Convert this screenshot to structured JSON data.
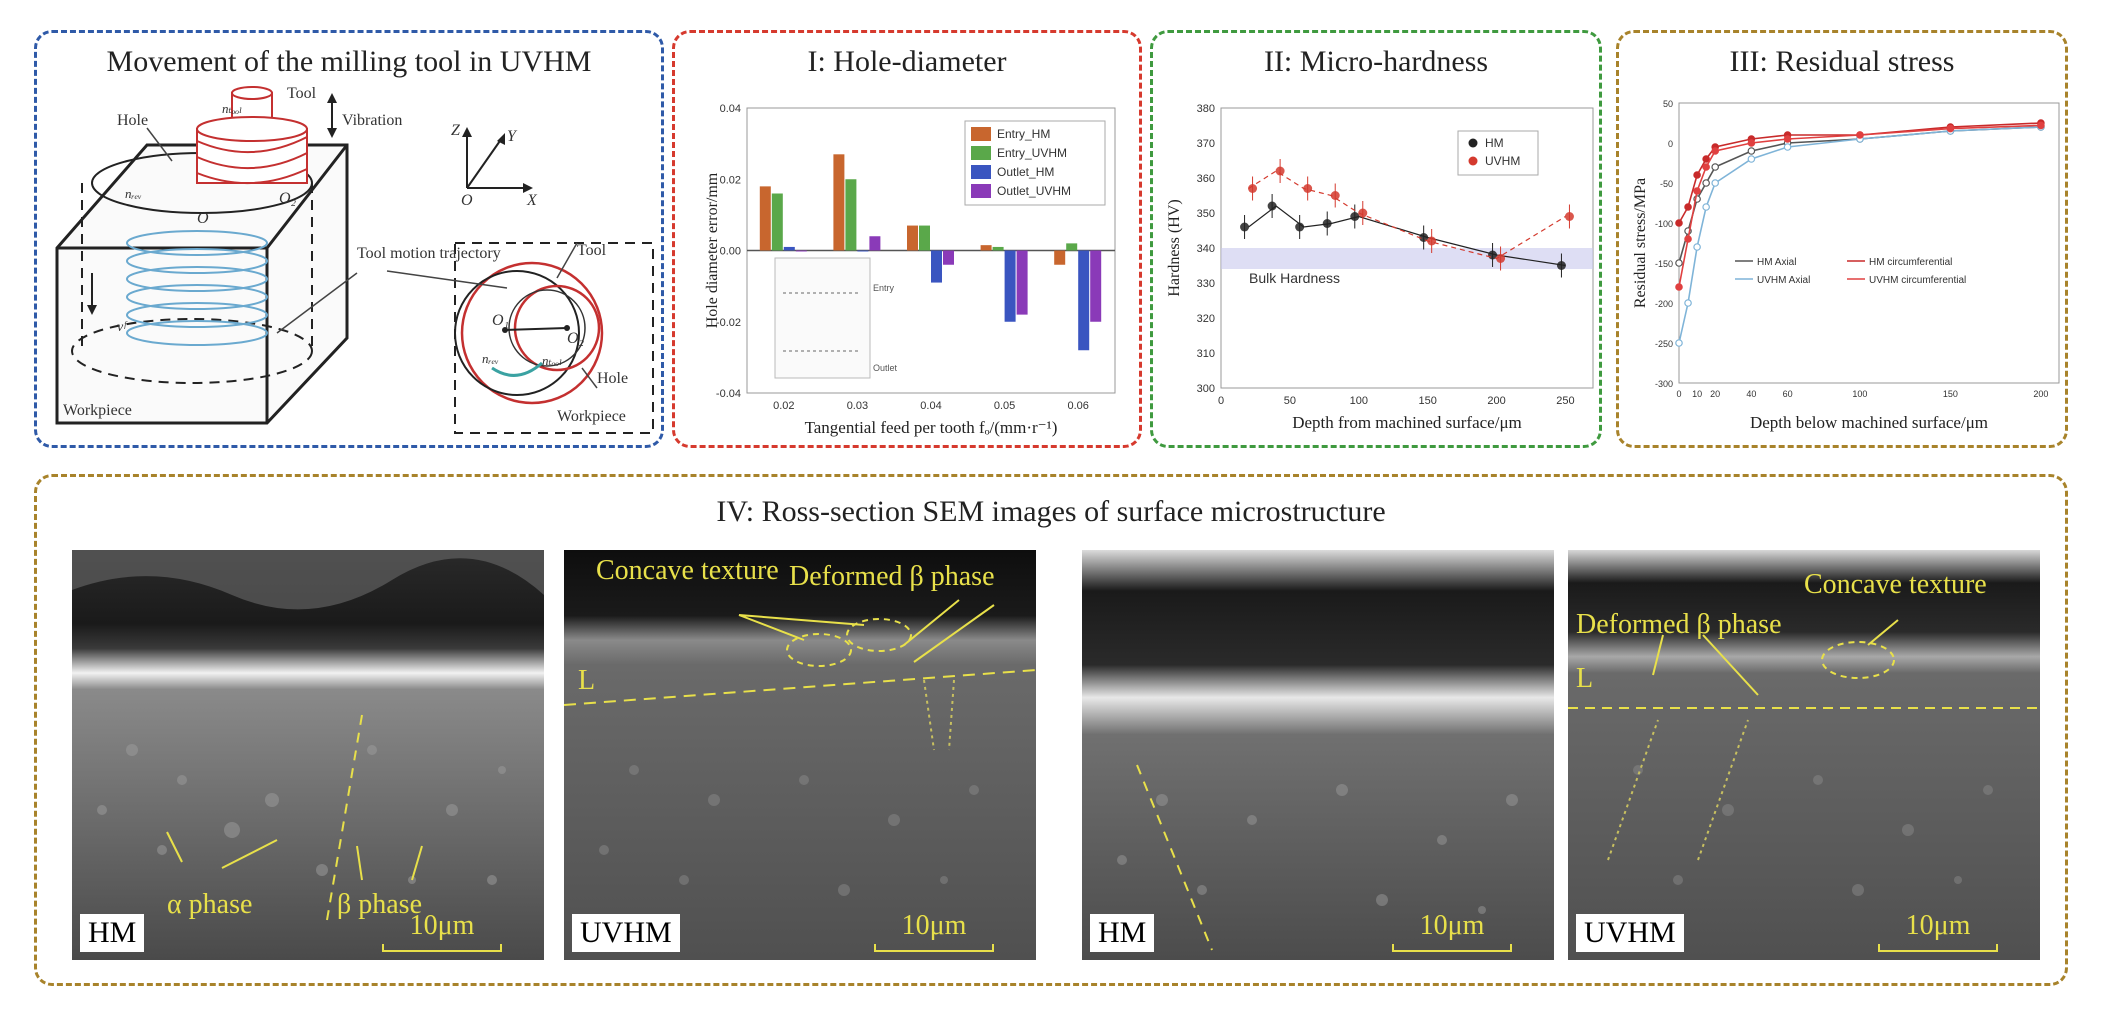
{
  "panels": {
    "movement": {
      "title": "Movement of the milling tool in UVHM",
      "labels": {
        "tool": "Tool",
        "vibration": "Vibration",
        "hole": "Hole",
        "workpiece": "Workpiece",
        "tool_motion": "Tool motion trajectory",
        "tool_inset": "Tool",
        "hole_inset": "Hole",
        "workpiece_inset": "Workpiece",
        "z": "Z",
        "y": "Y",
        "x": "X",
        "o": "O",
        "o1": "O₁",
        "o2": "O₂",
        "o_main": "O",
        "o2_main": "O₂",
        "n_tool": "nₜₒₒₗ",
        "n_rev": "nᵣₑᵥ",
        "n_rev2": "nᵣₑᵥ",
        "n_tool2": "nₜₒₒₗ",
        "v": "vᶠ"
      }
    },
    "hole": {
      "title": "I: Hole-diameter"
    },
    "hardness": {
      "title": "II: Micro-hardness"
    },
    "residual": {
      "title": "III: Residual stress"
    },
    "sem": {
      "title": "IV: Ross-section SEM images of surface microstructure"
    }
  },
  "chart_data": [
    {
      "id": "hole-diameter",
      "type": "bar",
      "xlabel": "Tangential feed per tooth fₒ/(mm·r⁻¹)",
      "ylabel": "Hole diameter error/mm",
      "categories": [
        "0.02",
        "0.03",
        "0.04",
        "0.05",
        "0.06"
      ],
      "ylim": [
        -0.04,
        0.04
      ],
      "yticks": [
        "0.04",
        "0.02",
        "0.00",
        "-0.02",
        "-0.04"
      ],
      "series": [
        {
          "name": "Entry_HM",
          "color": "#c8662e",
          "values": [
            0.018,
            0.027,
            0.007,
            0.0015,
            -0.004
          ]
        },
        {
          "name": "Entry_UVHM",
          "color": "#5aa84a",
          "values": [
            0.016,
            0.02,
            0.007,
            0.001,
            0.002
          ]
        },
        {
          "name": "Outlet_HM",
          "color": "#3a55c0",
          "values": [
            0.001,
            0.0,
            -0.009,
            -0.02,
            -0.028
          ]
        },
        {
          "name": "Outlet_UVHM",
          "color": "#8a3ab8",
          "values": [
            0.0,
            0.004,
            -0.004,
            -0.018,
            -0.02
          ]
        }
      ],
      "inset_labels": [
        "Entry",
        "Outlet"
      ]
    },
    {
      "id": "micro-hardness",
      "type": "scatter",
      "xlabel": "Depth from machined surface/μm",
      "ylabel": "Hardness (HV)",
      "xlim": [
        0,
        270
      ],
      "ylim": [
        300,
        380
      ],
      "xticks": [
        "0",
        "50",
        "100",
        "150",
        "200",
        "250"
      ],
      "yticks": [
        "380",
        "370",
        "360",
        "350",
        "340",
        "330",
        "320",
        "310",
        "300"
      ],
      "bulk_label": "Bulk Hardness",
      "bulk_range": [
        334,
        340
      ],
      "series": [
        {
          "name": "HM",
          "color": "#222222",
          "x": [
            20,
            40,
            60,
            80,
            100,
            150,
            200,
            250
          ],
          "y": [
            346,
            352,
            346,
            347,
            349,
            343,
            338,
            335
          ]
        },
        {
          "name": "UVHM",
          "color": "#d43a2e",
          "x": [
            20,
            40,
            60,
            80,
            100,
            150,
            200,
            250
          ],
          "y": [
            357,
            362,
            357,
            355,
            350,
            342,
            337,
            349
          ]
        }
      ]
    },
    {
      "id": "residual-stress",
      "type": "line",
      "xlabel": "Depth below machined surface/μm",
      "ylabel": "Residual stress/MPa",
      "xlim": [
        0,
        210
      ],
      "ylim": [
        -300,
        50
      ],
      "xticks": [
        "0",
        "10",
        "20",
        "40",
        "60",
        "100",
        "150",
        "200"
      ],
      "yticks": [
        "50",
        "0",
        "-50",
        "-100",
        "-150",
        "-200",
        "-250",
        "-300"
      ],
      "series": [
        {
          "name": "HM_Axial",
          "color": "#555555",
          "x": [
            0,
            5,
            10,
            15,
            20,
            40,
            60,
            100,
            150,
            200
          ],
          "y": [
            -150,
            -110,
            -70,
            -50,
            -30,
            -10,
            0,
            5,
            15,
            20
          ]
        },
        {
          "name": "HM circumferential",
          "color": "#c82a2a",
          "x": [
            0,
            5,
            10,
            15,
            20,
            40,
            60,
            100,
            150,
            200
          ],
          "y": [
            -100,
            -80,
            -40,
            -20,
            -5,
            5,
            10,
            10,
            20,
            25
          ]
        },
        {
          "name": "UVHM_Axial",
          "color": "#7fb4d8",
          "x": [
            0,
            5,
            10,
            15,
            20,
            40,
            60,
            100,
            150,
            200
          ],
          "y": [
            -250,
            -200,
            -130,
            -80,
            -50,
            -20,
            -5,
            5,
            15,
            20
          ]
        },
        {
          "name": "UVHM circumferential",
          "color": "#e04040",
          "x": [
            0,
            5,
            10,
            15,
            20,
            40,
            60,
            100,
            150,
            200
          ],
          "y": [
            -180,
            -120,
            -60,
            -30,
            -10,
            0,
            5,
            10,
            18,
            22
          ]
        }
      ]
    }
  ],
  "sem": {
    "images": [
      {
        "tag": "HM",
        "scale": "10μm",
        "labels": [
          {
            "key": "alpha",
            "text": "α phase"
          },
          {
            "key": "beta",
            "text": "β phase"
          }
        ]
      },
      {
        "tag": "UVHM",
        "scale": "10μm",
        "labels": [
          {
            "key": "concave",
            "text": "Concave texture"
          },
          {
            "key": "deformed",
            "text": "Deformed β phase"
          },
          {
            "key": "L",
            "text": "L"
          }
        ]
      },
      {
        "tag": "HM",
        "scale": "10μm",
        "labels": []
      },
      {
        "tag": "UVHM",
        "scale": "10μm",
        "labels": [
          {
            "key": "concave",
            "text": "Concave texture"
          },
          {
            "key": "deformed",
            "text": "Deformed β phase"
          },
          {
            "key": "L",
            "text": "L"
          }
        ]
      }
    ]
  },
  "colors": {
    "annotation_yellow": "#e8e04a",
    "blue_border": "#2f5aa8",
    "red_border": "#d63a2e",
    "green_border": "#3f9a3f",
    "gold_border": "#a8832b"
  }
}
